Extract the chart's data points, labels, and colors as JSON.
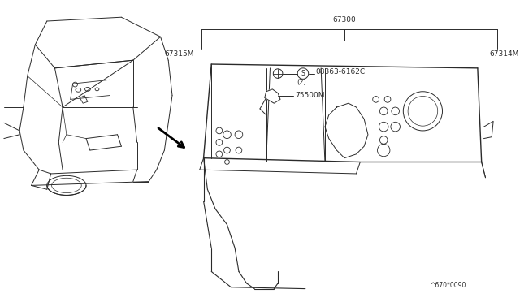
{
  "bg_color": "#ffffff",
  "line_color": "#2a2a2a",
  "text_color": "#2a2a2a",
  "part_number_main": "67300",
  "part_left": "67315M",
  "part_right": "67314M",
  "part_clip": "08363-6162C",
  "part_clip_qty": "(2)",
  "part_bracket": "75500M",
  "part_code": "^670*0090",
  "figsize": [
    6.4,
    3.72
  ],
  "dpi": 100
}
